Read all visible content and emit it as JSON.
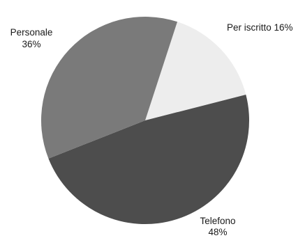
{
  "chart_data": {
    "type": "pie",
    "categories": [
      "Per iscritto",
      "Telefono",
      "Personale"
    ],
    "values": [
      16,
      48,
      36
    ],
    "labels": [
      {
        "name": "Per iscritto",
        "percent": "16%"
      },
      {
        "name": "Telefono",
        "percent": "48%"
      },
      {
        "name": "Personale",
        "percent": "36%"
      }
    ],
    "colors": [
      "#ededed",
      "#4d4d4d",
      "#7a7a7a"
    ],
    "legend": "none"
  }
}
